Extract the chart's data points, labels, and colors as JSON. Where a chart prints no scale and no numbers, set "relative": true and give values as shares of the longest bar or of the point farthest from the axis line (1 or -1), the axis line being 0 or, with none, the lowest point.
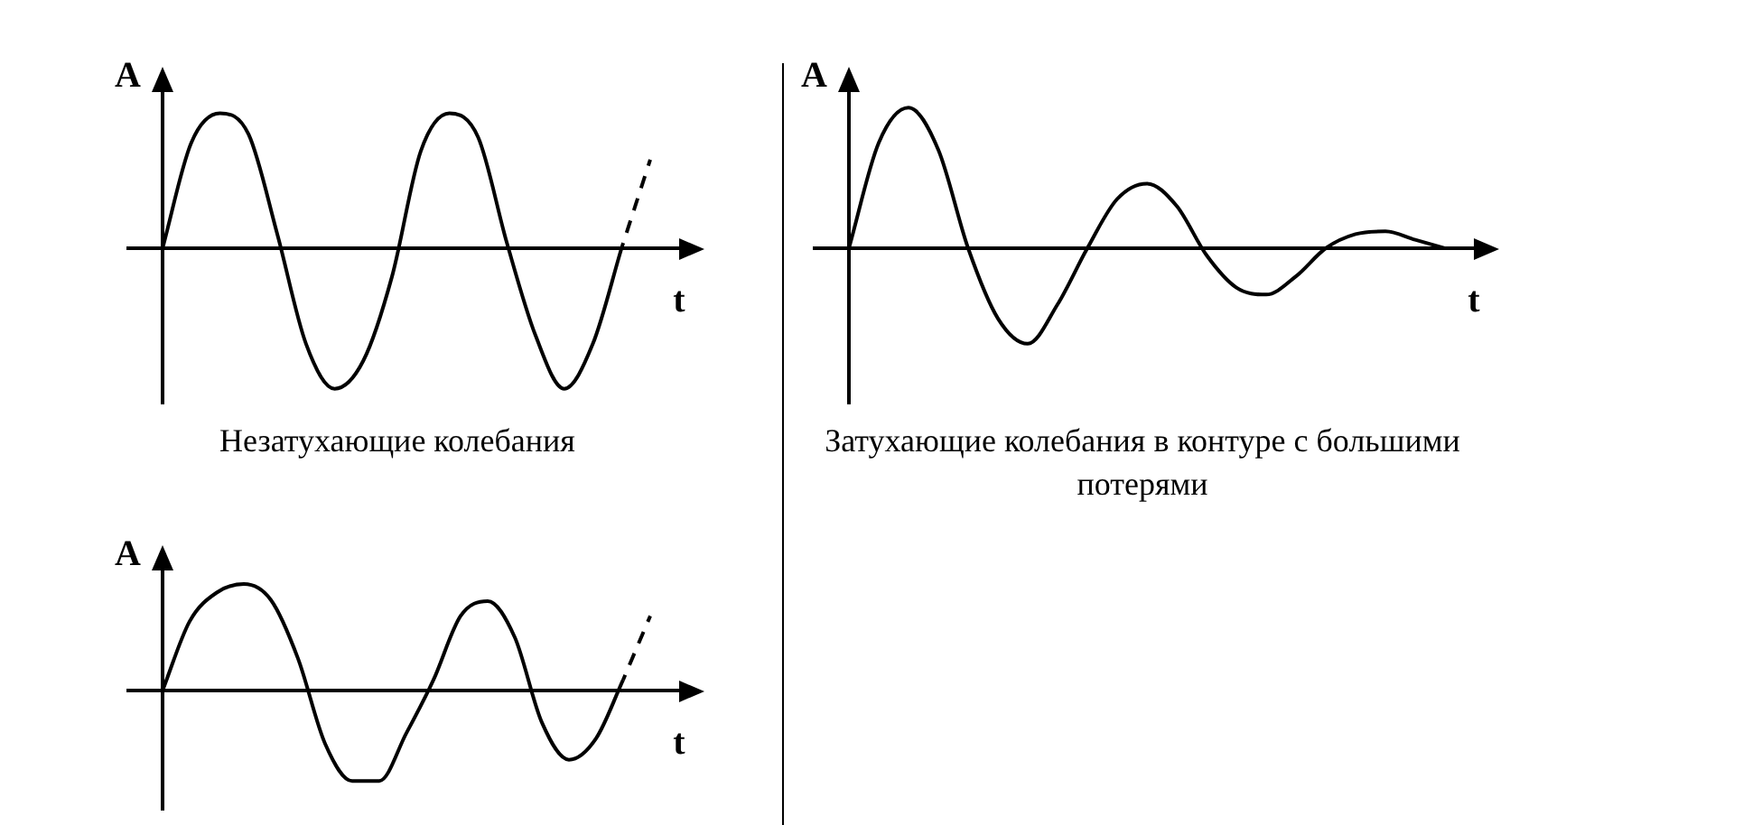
{
  "chart_data": [
    {
      "type": "line",
      "title": "Незатухающие колебания",
      "xlabel": "t",
      "ylabel": "A",
      "relative": true,
      "legend": false,
      "marker": "none",
      "categories": [
        null,
        null,
        null,
        null,
        null,
        null,
        null,
        null,
        null,
        null,
        null,
        null,
        null,
        null,
        null,
        null,
        null,
        null
      ],
      "series": [
        {
          "color": "#000000",
          "line_style": "solid",
          "values": [
            0,
            0.75,
            0.96,
            0.81,
            0.1,
            -0.68,
            -1,
            -0.8,
            -0.2,
            0.69,
            0.96,
            0.79,
            0.04,
            -0.62,
            -1,
            -0.68,
            0,
            null
          ]
        },
        {
          "color": "#000000",
          "line_style": "dashed",
          "values": [
            null,
            null,
            null,
            null,
            null,
            null,
            null,
            null,
            null,
            null,
            null,
            null,
            null,
            null,
            null,
            null,
            0,
            0.63
          ]
        }
      ]
    },
    {
      "type": "line",
      "title": "Затухающие колебания в контуре с большими потерями",
      "xlabel": "t",
      "ylabel": "A",
      "relative": true,
      "legend": false,
      "marker": "none",
      "categories": [
        null,
        null,
        null,
        null,
        null,
        null,
        null,
        null,
        null,
        null,
        null,
        null,
        null,
        null,
        null,
        null,
        null,
        null,
        null,
        null,
        null
      ],
      "series": [
        {
          "color": "#000000",
          "line_style": "solid",
          "values": [
            0,
            0.75,
            1,
            0.7,
            0,
            -0.5,
            -0.68,
            -0.4,
            0,
            0.35,
            0.46,
            0.3,
            -0.05,
            -0.28,
            -0.33,
            -0.2,
            0,
            0.1,
            0.12,
            0.06,
            0
          ]
        }
      ]
    },
    {
      "type": "line",
      "xlabel": "t",
      "ylabel": "A",
      "relative": true,
      "legend": false,
      "marker": "none",
      "categories": [
        null,
        null,
        null,
        null,
        null,
        null,
        null,
        null,
        null,
        null,
        null,
        null,
        null,
        null,
        null,
        null,
        null,
        null,
        null
      ],
      "series": [
        {
          "color": "#000000",
          "line_style": "solid",
          "values": [
            0,
            0.65,
            0.92,
            1,
            0.85,
            0.3,
            -0.5,
            -0.85,
            -0.85,
            -0.4,
            0.1,
            0.7,
            0.84,
            0.5,
            -0.3,
            -0.65,
            -0.45,
            0.1,
            null
          ]
        },
        {
          "color": "#000000",
          "line_style": "dashed",
          "values": [
            null,
            null,
            null,
            null,
            null,
            null,
            null,
            null,
            null,
            null,
            null,
            null,
            null,
            null,
            null,
            null,
            null,
            0.1,
            0.7
          ]
        }
      ]
    }
  ]
}
